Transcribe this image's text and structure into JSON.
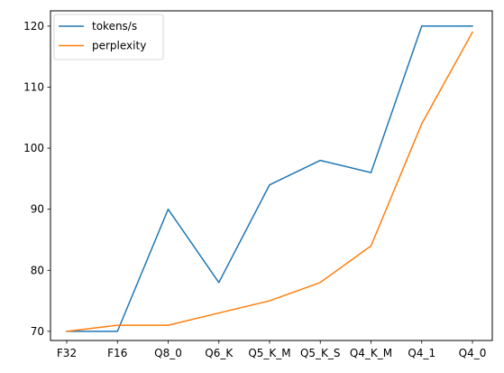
{
  "chart_data": {
    "type": "line",
    "title": "",
    "xlabel": "",
    "ylabel": "",
    "categories": [
      "F32",
      "F16",
      "Q8_0",
      "Q6_K",
      "Q5_K_M",
      "Q5_K_S",
      "Q4_K_M",
      "Q4_1",
      "Q4_0"
    ],
    "series": [
      {
        "name": "tokens/s",
        "color": "#1f77b4",
        "values": [
          70,
          70,
          90,
          78,
          94,
          98,
          96,
          120,
          120
        ]
      },
      {
        "name": "perplexity",
        "color": "#ff7f0e",
        "values": [
          70,
          71,
          71,
          73,
          75,
          78,
          84,
          104,
          119
        ]
      }
    ],
    "ylim": [
      68.5,
      122.5
    ],
    "yticks": [
      70,
      80,
      90,
      100,
      110,
      120
    ],
    "grid": false,
    "legend": "upper-left"
  }
}
